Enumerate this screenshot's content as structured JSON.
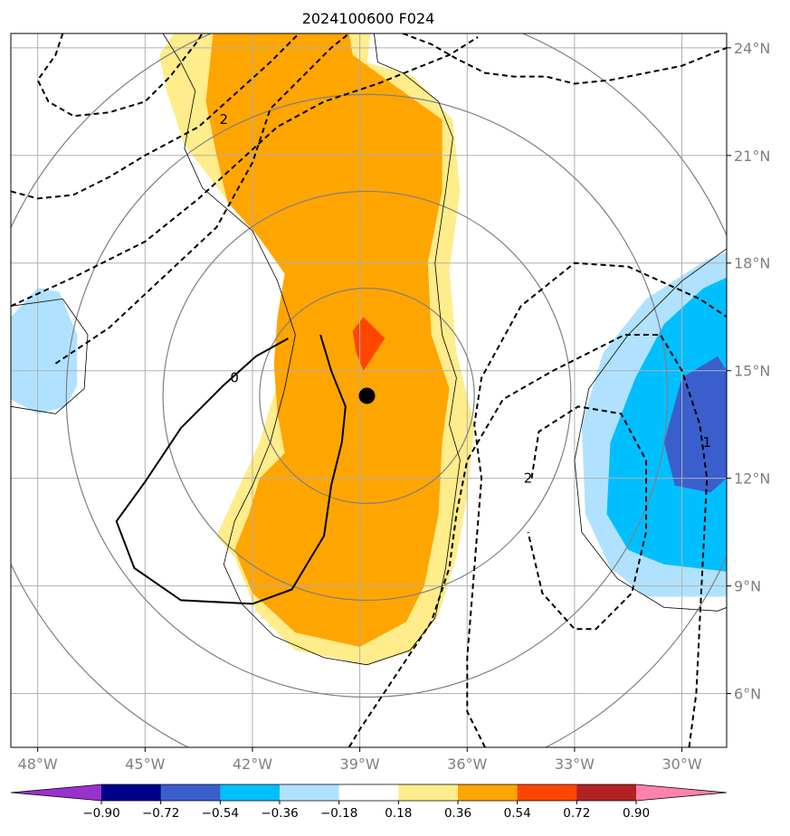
{
  "chart_data": {
    "type": "contour-map",
    "title": "2024100600 F024",
    "x": {
      "ticks": [
        -48,
        -45,
        -42,
        -39,
        -36,
        -33,
        -30
      ],
      "tick_labels": [
        "48°W",
        "45°W",
        "42°W",
        "39°W",
        "36°W",
        "33°W",
        "30°W"
      ],
      "lim": [
        -48.75,
        -28.75
      ]
    },
    "y": {
      "ticks": [
        6,
        9,
        12,
        15,
        18,
        21,
        24
      ],
      "tick_labels": [
        "6°N",
        "9°N",
        "12°N",
        "15°N",
        "18°N",
        "21°N",
        "24°N"
      ],
      "lim": [
        4.5,
        24.4
      ],
      "label_side": "right"
    },
    "grid": true,
    "center_marker": {
      "lon": -38.8,
      "lat": 14.3
    },
    "range_rings_deg": [
      3,
      5.7,
      8.4,
      11
    ],
    "colorbar": {
      "orientation": "horizontal",
      "extend": "both",
      "levels": [
        -0.9,
        -0.72,
        -0.54,
        -0.36,
        -0.18,
        0.18,
        0.36,
        0.54,
        0.72,
        0.9
      ],
      "labels": [
        "−0.90",
        "−0.72",
        "−0.54",
        "−0.36",
        "−0.18",
        "0.18",
        "0.36",
        "0.54",
        "0.72",
        "0.90"
      ],
      "colors": [
        "#9932cc",
        "#00008b",
        "#3a5fcd",
        "#00bfff",
        "#b0e2ff",
        "#ffffff",
        "#ffec8b",
        "#ffa500",
        "#ff4500",
        "#b22222",
        "#ff82ab"
      ]
    },
    "filled_regions": [
      {
        "level": "0.18 to 0.36",
        "color": "#ffec8b",
        "lonlat": [
          [
            -44.2,
            24.4
          ],
          [
            -38.7,
            24.4
          ],
          [
            -38.8,
            23.6
          ],
          [
            -37.5,
            23.2
          ],
          [
            -36.4,
            22.0
          ],
          [
            -36.2,
            20.0
          ],
          [
            -36.5,
            17.8
          ],
          [
            -36.3,
            15.5
          ],
          [
            -35.8,
            13.5
          ],
          [
            -36.0,
            11.5
          ],
          [
            -36.3,
            9.8
          ],
          [
            -36.8,
            8.2
          ],
          [
            -37.5,
            7.2
          ],
          [
            -38.8,
            6.8
          ],
          [
            -40.8,
            7.2
          ],
          [
            -41.9,
            8.3
          ],
          [
            -42.5,
            9.8
          ],
          [
            -43.0,
            10.4
          ],
          [
            -42.5,
            11.5
          ],
          [
            -41.8,
            13.0
          ],
          [
            -41.5,
            14.0
          ],
          [
            -41.0,
            15.5
          ],
          [
            -40.9,
            17.5
          ],
          [
            -41.9,
            18.8
          ],
          [
            -42.9,
            20.0
          ],
          [
            -43.9,
            21.3
          ],
          [
            -44.4,
            22.8
          ],
          [
            -44.6,
            23.8
          ]
        ]
      },
      {
        "level": "0.36 to 0.54",
        "color": "#ffa500",
        "lonlat": [
          [
            -43.1,
            24.4
          ],
          [
            -39.3,
            24.4
          ],
          [
            -39.2,
            23.8
          ],
          [
            -38.1,
            23.0
          ],
          [
            -37.4,
            22.5
          ],
          [
            -36.7,
            22.0
          ],
          [
            -36.7,
            20.0
          ],
          [
            -37.1,
            18.0
          ],
          [
            -37.0,
            16.0
          ],
          [
            -36.5,
            14.5
          ],
          [
            -36.7,
            13.0
          ],
          [
            -36.8,
            11.0
          ],
          [
            -37.2,
            9.0
          ],
          [
            -37.7,
            8.0
          ],
          [
            -39.0,
            7.3
          ],
          [
            -40.8,
            7.7
          ],
          [
            -42.0,
            8.8
          ],
          [
            -42.5,
            10.0
          ],
          [
            -42.1,
            11.0
          ],
          [
            -41.8,
            12.0
          ],
          [
            -41.1,
            12.7
          ],
          [
            -41.3,
            13.8
          ],
          [
            -41.4,
            15.2
          ],
          [
            -41.3,
            16.5
          ],
          [
            -41.1,
            17.7
          ],
          [
            -41.8,
            18.7
          ],
          [
            -42.7,
            19.7
          ],
          [
            -43.0,
            21.0
          ],
          [
            -43.3,
            22.5
          ]
        ]
      },
      {
        "level": "0.54 to 0.72",
        "color": "#ff4500",
        "lonlat": [
          [
            -38.9,
            16.5
          ],
          [
            -38.3,
            15.9
          ],
          [
            -38.9,
            15.0
          ],
          [
            -39.1,
            15.5
          ],
          [
            -39.2,
            16.1
          ]
        ]
      },
      {
        "level": "-0.36 to -0.18",
        "color": "#b0e2ff",
        "lonlat": [
          [
            -48.75,
            16.5
          ],
          [
            -48.0,
            17.3
          ],
          [
            -47.4,
            17.2
          ],
          [
            -46.9,
            16.0
          ],
          [
            -46.9,
            14.6
          ],
          [
            -47.2,
            14.0
          ],
          [
            -48.0,
            13.8
          ],
          [
            -48.75,
            14.2
          ]
        ]
      },
      {
        "level": "-0.36 to -0.18",
        "color": "#b0e2ff",
        "lonlat": [
          [
            -28.75,
            18.3
          ],
          [
            -29.3,
            18.1
          ],
          [
            -31.0,
            17.0
          ],
          [
            -32.2,
            15.5
          ],
          [
            -32.8,
            13.5
          ],
          [
            -32.7,
            11.0
          ],
          [
            -32.0,
            9.5
          ],
          [
            -31.0,
            8.7
          ],
          [
            -28.75,
            8.7
          ]
        ]
      },
      {
        "level": "-0.54 to -0.36",
        "color": "#00bfff",
        "lonlat": [
          [
            -28.75,
            17.6
          ],
          [
            -29.4,
            17.3
          ],
          [
            -30.5,
            16.3
          ],
          [
            -31.3,
            14.8
          ],
          [
            -32.0,
            13.0
          ],
          [
            -32.1,
            11.0
          ],
          [
            -31.5,
            10.0
          ],
          [
            -30.5,
            9.6
          ],
          [
            -28.75,
            9.4
          ]
        ]
      },
      {
        "level": "-0.72 to -0.54",
        "color": "#3a5fcd",
        "lonlat": [
          [
            -28.75,
            15.0
          ],
          [
            -29.0,
            15.4
          ],
          [
            -30.0,
            14.8
          ],
          [
            -30.5,
            13.0
          ],
          [
            -30.2,
            11.8
          ],
          [
            -29.2,
            11.6
          ],
          [
            -28.75,
            12.0
          ]
        ]
      }
    ],
    "contours": [
      {
        "value": "0",
        "style": "solid",
        "label": "0",
        "label_at": [
          -42.5,
          14.8
        ],
        "lonlat": [
          [
            -41.0,
            15.9
          ],
          [
            -41.9,
            15.4
          ],
          [
            -42.8,
            14.6
          ],
          [
            -44.0,
            13.4
          ],
          [
            -45.0,
            11.9
          ],
          [
            -45.8,
            10.8
          ],
          [
            -45.3,
            9.5
          ],
          [
            -44.0,
            8.6
          ],
          [
            -42.0,
            8.5
          ],
          [
            -40.9,
            8.9
          ],
          [
            -40.0,
            10.4
          ],
          [
            -39.8,
            11.8
          ],
          [
            -39.5,
            13.0
          ],
          [
            -39.4,
            14.0
          ],
          [
            -39.8,
            15.0
          ],
          [
            -40.1,
            16.0
          ]
        ]
      },
      {
        "value": "2",
        "style": "dashed",
        "label": "2",
        "label_at": [
          -42.8,
          22.0
        ],
        "lonlat": [
          [
            -47.5,
            15.2
          ],
          [
            -46.0,
            16.2
          ],
          [
            -44.5,
            17.6
          ],
          [
            -43.0,
            19.0
          ],
          [
            -42.0,
            20.8
          ],
          [
            -41.5,
            22.3
          ],
          [
            -40.6,
            23.2
          ],
          [
            -39.8,
            24.0
          ],
          [
            -39.3,
            24.4
          ]
        ]
      },
      {
        "value": "2",
        "style": "dashed",
        "label": "2",
        "label_at": [
          -34.3,
          12.0
        ],
        "lonlat": [
          [
            -35.5,
            4.5
          ],
          [
            -36.0,
            5.5
          ],
          [
            -36.0,
            7.0
          ],
          [
            -35.8,
            9.5
          ],
          [
            -35.6,
            12.0
          ],
          [
            -35.8,
            13.5
          ],
          [
            -35.6,
            14.8
          ],
          [
            -34.5,
            16.8
          ],
          [
            -33.0,
            18.0
          ],
          [
            -31.5,
            17.9
          ],
          [
            -29.5,
            17.0
          ],
          [
            -28.75,
            16.5
          ]
        ]
      },
      {
        "value": "2",
        "style": "dashed",
        "lonlat": [
          [
            -34.2,
            12.0
          ],
          [
            -34.0,
            13.3
          ],
          [
            -32.9,
            14.0
          ],
          [
            -31.7,
            13.8
          ],
          [
            -31.0,
            12.5
          ],
          [
            -31.0,
            10.5
          ],
          [
            -31.4,
            8.8
          ],
          [
            -32.4,
            7.8
          ],
          [
            -33.0,
            7.8
          ],
          [
            -33.9,
            8.8
          ],
          [
            -34.3,
            10.5
          ]
        ]
      },
      {
        "value": "1",
        "style": "dashed",
        "label": "1",
        "label_at": [
          -29.3,
          13.0
        ],
        "lonlat": [
          [
            -29.8,
            4.5
          ],
          [
            -29.6,
            6.0
          ],
          [
            -29.5,
            8.0
          ],
          [
            -29.4,
            10.0
          ],
          [
            -29.3,
            12.0
          ],
          [
            -29.5,
            13.5
          ],
          [
            -30.0,
            15.0
          ],
          [
            -30.6,
            16.0
          ],
          [
            -31.6,
            16.0
          ],
          [
            -32.6,
            15.5
          ],
          [
            -33.6,
            15.0
          ],
          [
            -35.0,
            14.2
          ],
          [
            -36.0,
            12.5
          ],
          [
            -36.3,
            11.0
          ],
          [
            -36.5,
            9.5
          ],
          [
            -37.0,
            8.0
          ],
          [
            -38.0,
            6.5
          ],
          [
            -39.0,
            5.0
          ],
          [
            -39.3,
            4.5
          ]
        ]
      },
      {
        "value": "",
        "style": "dashed",
        "lonlat": [
          [
            -48.75,
            20.0
          ],
          [
            -48.0,
            19.8
          ],
          [
            -47.0,
            19.9
          ],
          [
            -46.0,
            20.4
          ],
          [
            -45.0,
            21.0
          ],
          [
            -43.5,
            21.8
          ],
          [
            -42.5,
            22.7
          ],
          [
            -41.5,
            23.6
          ],
          [
            -40.7,
            24.4
          ]
        ]
      },
      {
        "value": "",
        "style": "dashed",
        "lonlat": [
          [
            -48.75,
            16.8
          ],
          [
            -47.0,
            17.6
          ],
          [
            -45.0,
            18.6
          ],
          [
            -43.5,
            19.8
          ],
          [
            -42.4,
            20.8
          ],
          [
            -41.3,
            21.8
          ],
          [
            -40.0,
            22.5
          ],
          [
            -38.5,
            23.0
          ],
          [
            -37.5,
            23.4
          ],
          [
            -36.5,
            23.8
          ],
          [
            -35.7,
            24.3
          ]
        ]
      },
      {
        "value": "",
        "style": "dashed",
        "lonlat": [
          [
            -47.3,
            24.4
          ],
          [
            -47.5,
            23.8
          ],
          [
            -48.0,
            23.1
          ],
          [
            -47.7,
            22.5
          ],
          [
            -47.0,
            22.1
          ],
          [
            -46.0,
            22.2
          ],
          [
            -45.0,
            22.5
          ],
          [
            -44.3,
            23.2
          ],
          [
            -43.6,
            24.1
          ],
          [
            -43.4,
            24.4
          ]
        ]
      },
      {
        "value": "",
        "style": "dashed",
        "lonlat": [
          [
            -37.8,
            24.4
          ],
          [
            -37.0,
            24.1
          ],
          [
            -36.3,
            23.7
          ],
          [
            -35.5,
            23.3
          ],
          [
            -34.7,
            23.2
          ],
          [
            -33.8,
            23.2
          ],
          [
            -33.0,
            23.0
          ],
          [
            -32.0,
            23.1
          ],
          [
            -31.0,
            23.3
          ],
          [
            -30.0,
            23.5
          ],
          [
            -29.0,
            23.9
          ],
          [
            -28.75,
            24.0
          ]
        ]
      }
    ],
    "outlines": [
      {
        "lonlat": [
          [
            -44.5,
            24.4
          ],
          [
            -44.0,
            23.6
          ],
          [
            -43.6,
            22.8
          ],
          [
            -43.9,
            21.2
          ],
          [
            -43.4,
            20.1
          ],
          [
            -42.0,
            18.9
          ],
          [
            -41.3,
            17.5
          ],
          [
            -40.8,
            16.0
          ],
          [
            -41.1,
            14.5
          ],
          [
            -41.5,
            13.0
          ],
          [
            -42.0,
            11.8
          ],
          [
            -42.5,
            10.8
          ],
          [
            -42.8,
            9.6
          ],
          [
            -42.3,
            8.5
          ],
          [
            -41.4,
            7.6
          ],
          [
            -40.0,
            7.0
          ],
          [
            -38.8,
            6.8
          ],
          [
            -37.6,
            7.2
          ],
          [
            -36.9,
            8.1
          ],
          [
            -36.6,
            9.5
          ],
          [
            -36.4,
            11.0
          ],
          [
            -36.2,
            12.5
          ],
          [
            -36.5,
            13.5
          ],
          [
            -36.3,
            14.8
          ],
          [
            -36.7,
            16.0
          ],
          [
            -36.9,
            18.0
          ],
          [
            -36.6,
            20.0
          ],
          [
            -36.4,
            21.5
          ],
          [
            -36.8,
            22.5
          ],
          [
            -37.8,
            23.3
          ],
          [
            -38.5,
            23.6
          ],
          [
            -38.6,
            24.4
          ]
        ]
      },
      {
        "lonlat": [
          [
            -48.75,
            16.8
          ],
          [
            -47.3,
            17.0
          ],
          [
            -46.6,
            16.0
          ],
          [
            -46.7,
            14.5
          ],
          [
            -47.5,
            13.8
          ],
          [
            -48.75,
            14.0
          ]
        ]
      },
      {
        "lonlat": [
          [
            -28.75,
            18.4
          ],
          [
            -30.0,
            17.5
          ],
          [
            -31.5,
            16.0
          ],
          [
            -32.6,
            14.5
          ],
          [
            -33.0,
            12.5
          ],
          [
            -32.8,
            10.5
          ],
          [
            -31.8,
            9.2
          ],
          [
            -30.5,
            8.4
          ],
          [
            -29.0,
            8.3
          ],
          [
            -28.75,
            8.4
          ]
        ]
      }
    ]
  }
}
